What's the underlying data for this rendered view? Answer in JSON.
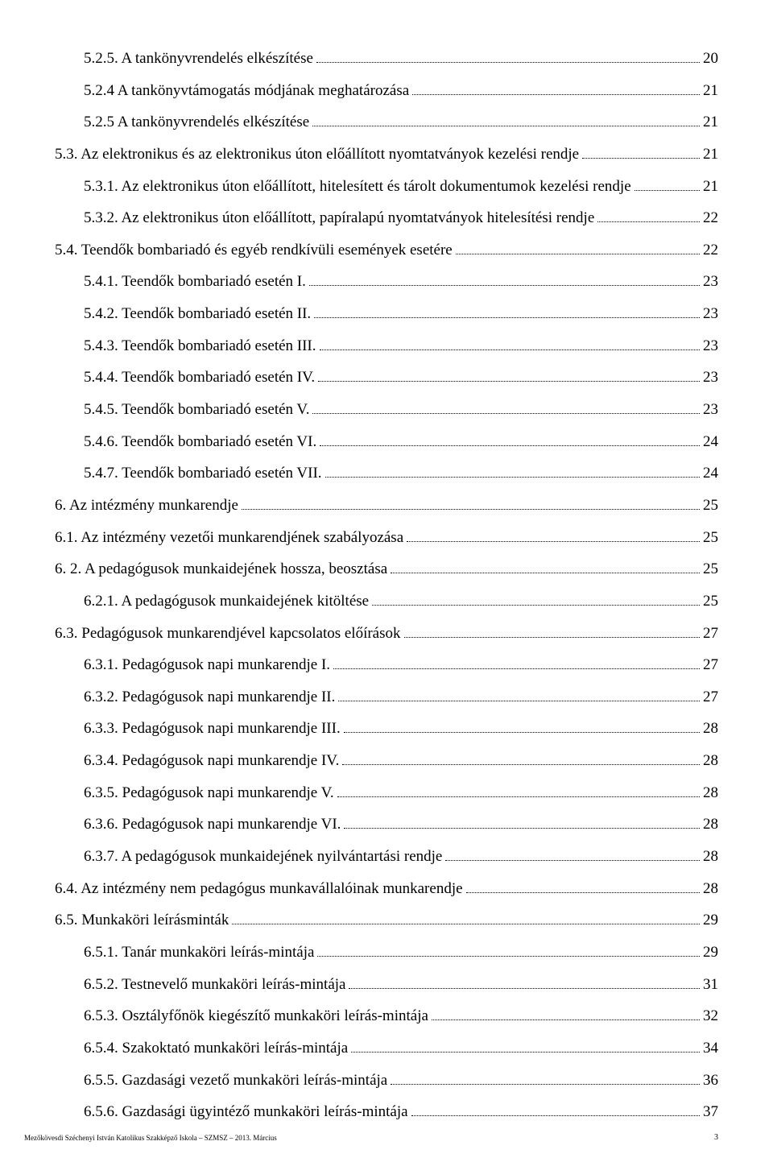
{
  "toc": [
    {
      "indent": 1,
      "label": "5.2.5. A tankönyvrendelés elkészítése",
      "page": "20"
    },
    {
      "indent": 1,
      "label": "5.2.4 A tankönyvtámogatás módjának meghatározása",
      "page": "21"
    },
    {
      "indent": 1,
      "label": "5.2.5 A tankönyvrendelés elkészítése",
      "page": "21"
    },
    {
      "indent": 0,
      "label": "5.3. Az elektronikus és az elektronikus úton előállított nyomtatványok kezelési rendje",
      "page": "21"
    },
    {
      "indent": 1,
      "label": "5.3.1. Az elektronikus úton előállított, hitelesített és tárolt dokumentumok kezelési rendje",
      "page": "21"
    },
    {
      "indent": 1,
      "label": "5.3.2. Az elektronikus úton előállított, papíralapú nyomtatványok hitelesítési rendje",
      "page": "22"
    },
    {
      "indent": 0,
      "label": "5.4. Teendők bombariadó és egyéb rendkívüli események esetére",
      "page": "22"
    },
    {
      "indent": 1,
      "label": "5.4.1. Teendők bombariadó esetén I.",
      "page": "23"
    },
    {
      "indent": 1,
      "label": "5.4.2. Teendők bombariadó esetén II.",
      "page": "23"
    },
    {
      "indent": 1,
      "label": "5.4.3. Teendők bombariadó esetén III.",
      "page": "23"
    },
    {
      "indent": 1,
      "label": "5.4.4. Teendők bombariadó esetén IV.",
      "page": "23"
    },
    {
      "indent": 1,
      "label": "5.4.5. Teendők bombariadó esetén V.",
      "page": "23"
    },
    {
      "indent": 1,
      "label": "5.4.6. Teendők bombariadó esetén VI.",
      "page": "24"
    },
    {
      "indent": 1,
      "label": "5.4.7. Teendők bombariadó esetén VII.",
      "page": "24"
    },
    {
      "indent": 0,
      "label": "6.    Az intézmény munkarendje",
      "page": "25"
    },
    {
      "indent": 0,
      "label": "6.1. Az intézmény vezetői munkarendjének szabályozása",
      "page": "25"
    },
    {
      "indent": 0,
      "label": "6. 2. A pedagógusok munkaidejének hossza, beosztása",
      "page": "25"
    },
    {
      "indent": 1,
      "label": "6.2.1. A pedagógusok munkaidejének kitöltése",
      "page": "25"
    },
    {
      "indent": 0,
      "label": "6.3. Pedagógusok munkarendjével kapcsolatos előírások",
      "page": "27"
    },
    {
      "indent": 1,
      "label": "6.3.1. Pedagógusok napi munkarendje I.",
      "page": "27"
    },
    {
      "indent": 1,
      "label": "6.3.2. Pedagógusok napi munkarendje II.",
      "page": "27"
    },
    {
      "indent": 1,
      "label": "6.3.3. Pedagógusok napi munkarendje III.",
      "page": "28"
    },
    {
      "indent": 1,
      "label": "6.3.4. Pedagógusok napi munkarendje IV.",
      "page": "28"
    },
    {
      "indent": 1,
      "label": "6.3.5. Pedagógusok napi munkarendje V.",
      "page": "28"
    },
    {
      "indent": 1,
      "label": "6.3.6. Pedagógusok napi munkarendje VI.",
      "page": "28"
    },
    {
      "indent": 1,
      "label": "6.3.7. A pedagógusok munkaidejének nyilvántartási rendje",
      "page": "28"
    },
    {
      "indent": 0,
      "label": "6.4. Az intézmény nem pedagógus munkavállalóinak munkarendje",
      "page": "28"
    },
    {
      "indent": 0,
      "label": "6.5. Munkaköri leírásminták",
      "page": "29"
    },
    {
      "indent": 1,
      "label": "6.5.1. Tanár munkaköri leírás-mintája",
      "page": "29"
    },
    {
      "indent": 1,
      "label": "6.5.2. Testnevelő munkaköri leírás-mintája",
      "page": "31"
    },
    {
      "indent": 1,
      "label": "6.5.3. Osztályfőnök kiegészítő munkaköri leírás-mintája",
      "page": "32"
    },
    {
      "indent": 1,
      "label": "6.5.4. Szakoktató munkaköri leírás-mintája",
      "page": "34"
    },
    {
      "indent": 1,
      "label": "6.5.5. Gazdasági vezető munkaköri leírás-mintája",
      "page": "36"
    },
    {
      "indent": 1,
      "label": "6.5.6. Gazdasági ügyintéző munkaköri leírás-mintája",
      "page": "37"
    }
  ],
  "footer_text": "Mezőkövesdi Széchenyi István Katolikus Szakképző Iskola – SZMSZ – 2013. Március",
  "page_number": "3",
  "colors": {
    "text": "#000000",
    "background": "#ffffff"
  },
  "font": {
    "family": "Times New Roman",
    "size_body": 19,
    "size_footer": 9
  }
}
